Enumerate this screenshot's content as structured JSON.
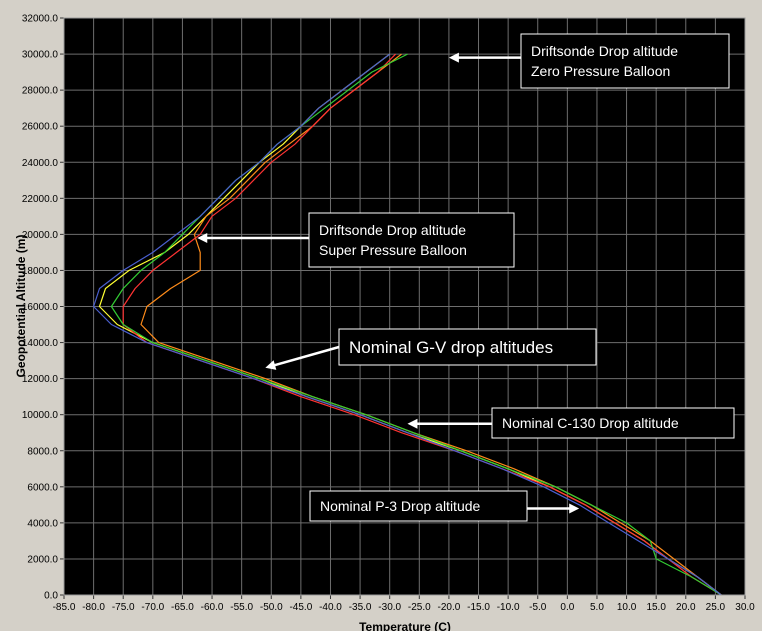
{
  "chart_data": {
    "type": "line",
    "title": "",
    "xlabel": "Temperature (C)",
    "ylabel": "Geopotential Altitude (m)",
    "xlim": [
      -85,
      30
    ],
    "ylim": [
      0,
      32000
    ],
    "x_ticks": [
      -85,
      -80,
      -75,
      -70,
      -65,
      -60,
      -55,
      -50,
      -45,
      -40,
      -35,
      -30,
      -25,
      -20,
      -15,
      -10,
      -5,
      0,
      5,
      10,
      15,
      20,
      25,
      30
    ],
    "x_tick_labels": [
      "-85.0",
      "-80.0",
      "-75.0",
      "-70.0",
      "-65.0",
      "-60.0",
      "-55.0",
      "-50.0",
      "-45.0",
      "-40.0",
      "-35.0",
      "-30.0",
      "-25.0",
      "-20.0",
      "-15.0",
      "-10.0",
      "-5.0",
      "0.0",
      "5.0",
      "10.0",
      "15.0",
      "20.0",
      "25.0",
      "30.0"
    ],
    "y_ticks": [
      0,
      2000,
      4000,
      6000,
      8000,
      10000,
      12000,
      14000,
      16000,
      18000,
      20000,
      22000,
      24000,
      26000,
      28000,
      30000,
      32000
    ],
    "y_tick_labels": [
      "0.0",
      "2000.0",
      "4000.0",
      "6000.0",
      "8000.0",
      "10000.0",
      "12000.0",
      "14000.0",
      "16000.0",
      "18000.0",
      "20000.0",
      "22000.0",
      "24000.0",
      "26000.0",
      "28000.0",
      "30000.0",
      "32000.0"
    ],
    "grid": true,
    "legend": "none",
    "background": "#000000",
    "gridline_color": "#6e6e6e",
    "series": [
      {
        "color": "#ffff33",
        "points": [
          [
            26,
            0
          ],
          [
            22,
            1000
          ],
          [
            17,
            2000
          ],
          [
            13,
            3000
          ],
          [
            8,
            4000
          ],
          [
            3,
            5000
          ],
          [
            -3,
            6000
          ],
          [
            -10,
            7000
          ],
          [
            -18,
            8000
          ],
          [
            -27,
            9000
          ],
          [
            -35,
            10000
          ],
          [
            -44,
            11000
          ],
          [
            -52,
            12000
          ],
          [
            -61,
            13000
          ],
          [
            -70,
            14000
          ],
          [
            -76,
            15000
          ],
          [
            -79,
            16000
          ],
          [
            -78,
            17000
          ],
          [
            -74,
            18000
          ],
          [
            -68,
            19000
          ],
          [
            -64,
            20000
          ],
          [
            -61,
            21000
          ],
          [
            -58,
            22000
          ],
          [
            -55,
            23000
          ],
          [
            -52,
            24000
          ],
          [
            -48,
            25000
          ],
          [
            -45,
            26000
          ],
          [
            -42,
            27000
          ],
          [
            -38,
            28000
          ],
          [
            -34,
            29000
          ],
          [
            -30,
            30000
          ]
        ]
      },
      {
        "color": "#ff8c1a",
        "points": [
          [
            26,
            0
          ],
          [
            22,
            1000
          ],
          [
            18,
            2000
          ],
          [
            14,
            3000
          ],
          [
            9,
            4000
          ],
          [
            4,
            5000
          ],
          [
            -2,
            6000
          ],
          [
            -9,
            7000
          ],
          [
            -17,
            8000
          ],
          [
            -26,
            9000
          ],
          [
            -34,
            10000
          ],
          [
            -43,
            11000
          ],
          [
            -51,
            12000
          ],
          [
            -60,
            13000
          ],
          [
            -69,
            14000
          ],
          [
            -72,
            15000
          ],
          [
            -71,
            16000
          ],
          [
            -67,
            17000
          ],
          [
            -62,
            18000
          ],
          [
            -62,
            19000
          ],
          [
            -63,
            20000
          ],
          [
            -61,
            21000
          ],
          [
            -57,
            22000
          ],
          [
            -54,
            23000
          ],
          [
            -51,
            24000
          ],
          [
            -47,
            25000
          ],
          [
            -43,
            26000
          ],
          [
            -40,
            27000
          ],
          [
            -36,
            28000
          ],
          [
            -32,
            29000
          ],
          [
            -28,
            30000
          ]
        ]
      },
      {
        "color": "#ff3333",
        "points": [
          [
            26,
            0
          ],
          [
            21,
            1000
          ],
          [
            17,
            2000
          ],
          [
            13,
            3000
          ],
          [
            8,
            4000
          ],
          [
            3,
            5000
          ],
          [
            -3,
            6000
          ],
          [
            -11,
            7000
          ],
          [
            -19,
            8000
          ],
          [
            -28,
            9000
          ],
          [
            -36,
            10000
          ],
          [
            -45,
            11000
          ],
          [
            -53,
            12000
          ],
          [
            -62,
            13000
          ],
          [
            -71,
            14000
          ],
          [
            -75,
            15000
          ],
          [
            -75,
            16000
          ],
          [
            -73,
            17000
          ],
          [
            -70,
            18000
          ],
          [
            -66,
            19000
          ],
          [
            -62,
            20000
          ],
          [
            -60,
            21000
          ],
          [
            -56,
            22000
          ],
          [
            -53,
            23000
          ],
          [
            -50,
            24000
          ],
          [
            -46,
            25000
          ],
          [
            -43,
            26000
          ],
          [
            -40,
            27000
          ],
          [
            -36,
            28000
          ],
          [
            -32,
            29000
          ],
          [
            -29,
            30000
          ]
        ]
      },
      {
        "color": "#33cc33",
        "points": [
          [
            26,
            0
          ],
          [
            21,
            1000
          ],
          [
            15,
            2000
          ],
          [
            14,
            3000
          ],
          [
            10,
            4000
          ],
          [
            4,
            5000
          ],
          [
            -2,
            6000
          ],
          [
            -10,
            7000
          ],
          [
            -18,
            8000
          ],
          [
            -26,
            9000
          ],
          [
            -34,
            10000
          ],
          [
            -43,
            11000
          ],
          [
            -52,
            12000
          ],
          [
            -61,
            13000
          ],
          [
            -70,
            14000
          ],
          [
            -75,
            15000
          ],
          [
            -77,
            16000
          ],
          [
            -75,
            17000
          ],
          [
            -72,
            18000
          ],
          [
            -68,
            19000
          ],
          [
            -65,
            20000
          ],
          [
            -62,
            21000
          ],
          [
            -59,
            22000
          ],
          [
            -56,
            23000
          ],
          [
            -52,
            24000
          ],
          [
            -49,
            25000
          ],
          [
            -45,
            26000
          ],
          [
            -41,
            27000
          ],
          [
            -37,
            28000
          ],
          [
            -33,
            29000
          ],
          [
            -27,
            30000
          ]
        ]
      },
      {
        "color": "#4a5fd0",
        "points": [
          [
            26,
            0
          ],
          [
            22,
            1000
          ],
          [
            17,
            2000
          ],
          [
            12,
            3000
          ],
          [
            7,
            4000
          ],
          [
            2,
            5000
          ],
          [
            -4,
            6000
          ],
          [
            -11,
            7000
          ],
          [
            -19,
            8000
          ],
          [
            -27,
            9000
          ],
          [
            -35,
            10000
          ],
          [
            -44,
            11000
          ],
          [
            -53,
            12000
          ],
          [
            -62,
            13000
          ],
          [
            -71,
            14000
          ],
          [
            -77,
            15000
          ],
          [
            -80,
            16000
          ],
          [
            -79,
            17000
          ],
          [
            -75,
            18000
          ],
          [
            -70,
            19000
          ],
          [
            -66,
            20000
          ],
          [
            -62,
            21000
          ],
          [
            -59,
            22000
          ],
          [
            -56,
            23000
          ],
          [
            -52,
            24000
          ],
          [
            -49,
            25000
          ],
          [
            -45,
            26000
          ],
          [
            -42,
            27000
          ],
          [
            -38,
            28000
          ],
          [
            -34,
            29000
          ],
          [
            -30,
            30000
          ]
        ]
      }
    ],
    "annotations": [
      {
        "lines": [
          "Driftsonde Drop altitude",
          "Zero Pressure Balloon"
        ],
        "arrow_to": [
          -20,
          29800
        ]
      },
      {
        "lines": [
          "Driftsonde Drop altitude",
          "Super Pressure Balloon"
        ],
        "arrow_to": [
          -62.5,
          19800
        ]
      },
      {
        "lines": [
          "Nominal G-V drop altitudes"
        ],
        "arrow_to": [
          -51,
          12600
        ]
      },
      {
        "lines": [
          "Nominal C-130 Drop altitude"
        ],
        "arrow_to": [
          -27,
          9500
        ]
      },
      {
        "lines": [
          "Nominal P-3 Drop altitude"
        ],
        "arrow_to": [
          2,
          4800
        ]
      }
    ]
  }
}
